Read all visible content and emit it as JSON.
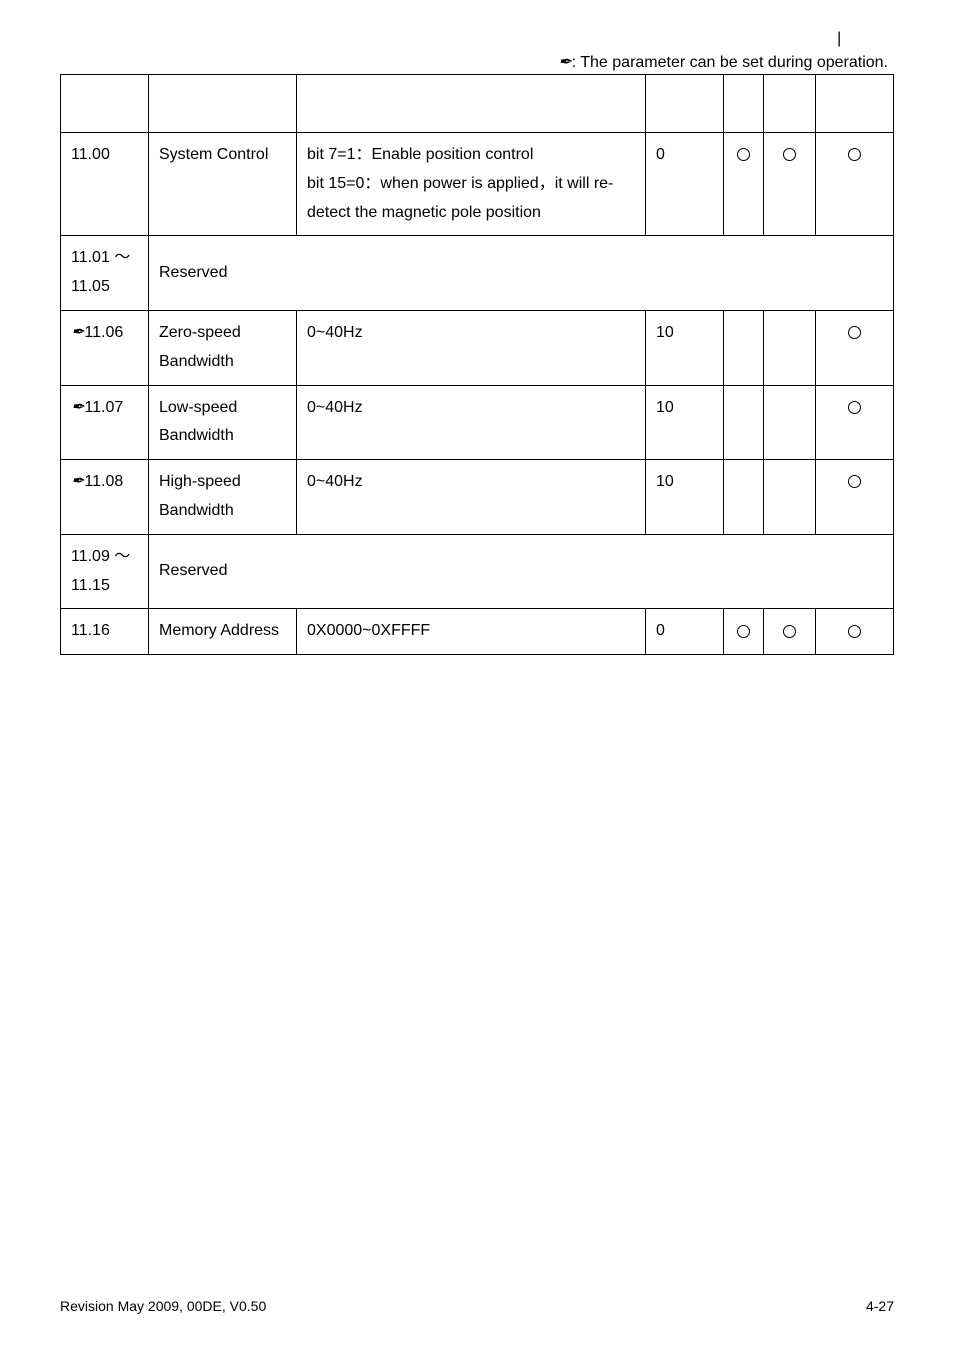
{
  "cursor": "|",
  "caption_prefix": "✒",
  "caption_text": ": The parameter can be set during operation.",
  "circle_glyph": "○",
  "cols": [
    "code",
    "name",
    "desc",
    "def",
    "a",
    "b",
    "c"
  ],
  "rows": [
    {
      "code": "11.00",
      "name": "System Control",
      "desc": "bit 7=1：Enable position control\nbit 15=0：when power is applied，it will re-detect the magnetic pole position",
      "def": "0",
      "a": "○",
      "b": "○",
      "c": "○"
    },
    {
      "code": "11.01 ～\n11.05",
      "reserved": "Reserved",
      "span": 6
    },
    {
      "code_prefix": "✒",
      "code": "11.06",
      "name": "Zero-speed Bandwidth",
      "desc": "0~40Hz",
      "def": "10",
      "a": "",
      "b": "",
      "c": "○"
    },
    {
      "code_prefix": "✒",
      "code": "11.07",
      "name": "Low-speed Bandwidth",
      "desc": "0~40Hz",
      "def": "10",
      "a": "",
      "b": "",
      "c": "○"
    },
    {
      "code_prefix": "✒",
      "code": "11.08",
      "name": "High-speed Bandwidth",
      "desc": "0~40Hz",
      "def": "10",
      "a": "",
      "b": "",
      "c": "○"
    },
    {
      "code": "11.09 ～\n11.15",
      "reserved": "Reserved",
      "span": 6
    },
    {
      "code": "11.16",
      "name": "Memory Address",
      "desc": "0X0000~0XFFFF",
      "def": "0",
      "a": "○",
      "b": "○",
      "c": "○"
    }
  ],
  "footer_left": "Revision May 2009, 00DE, V0.50",
  "footer_right": "4-27"
}
